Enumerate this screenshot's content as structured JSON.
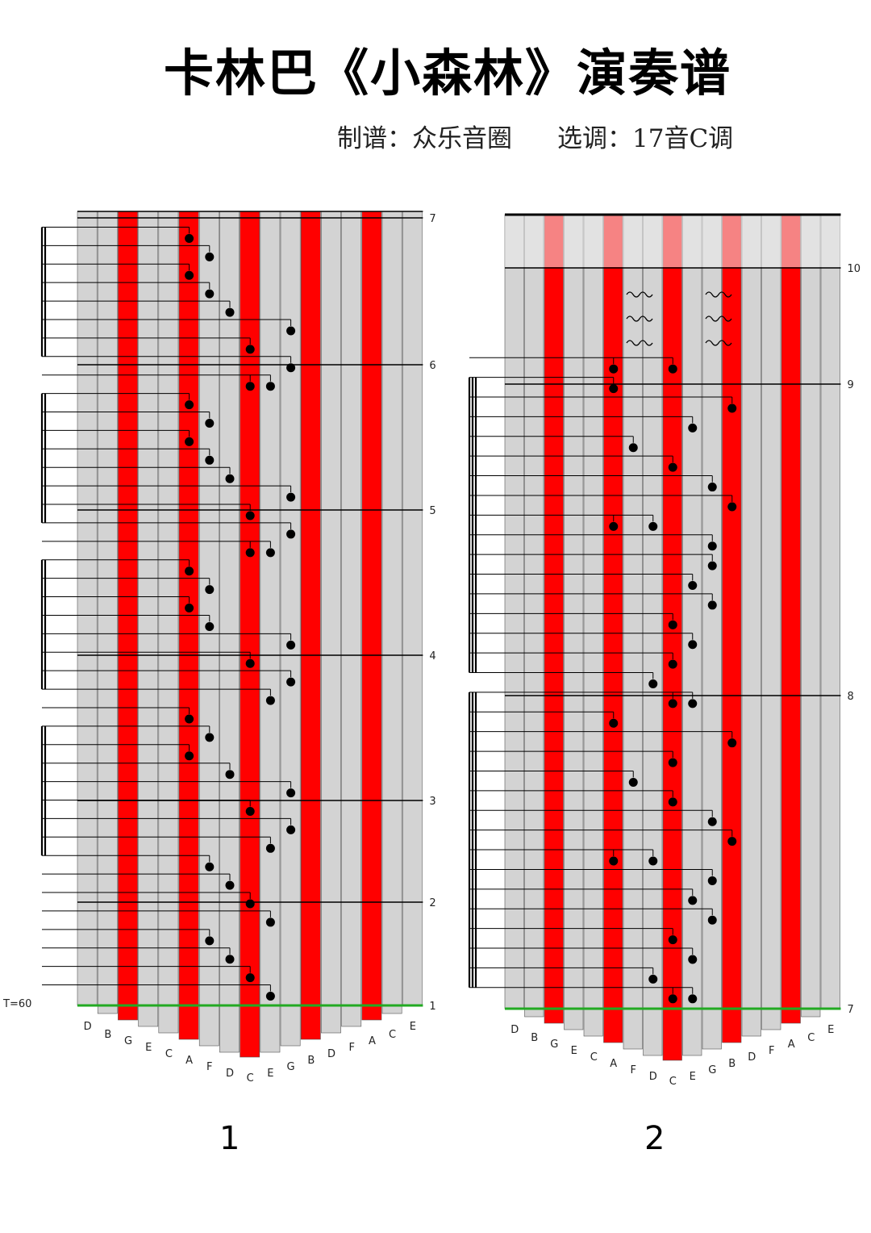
{
  "title": "卡林巴《小森林》演奏谱",
  "credits": {
    "arranger": "制谱：众乐音圈",
    "key": "选调：17音C调"
  },
  "keys": [
    "D",
    "B",
    "G",
    "E",
    "C",
    "A",
    "F",
    "D",
    "C",
    "E",
    "G",
    "B",
    "D",
    "F",
    "A",
    "C",
    "E"
  ],
  "red_key_indices": [
    2,
    5,
    8,
    11,
    14
  ],
  "colors": {
    "red_key": "#ff0000",
    "grey_key": "#d3d3d3",
    "line": "#000000",
    "green_line": "#22aa22",
    "background": "#ffffff"
  },
  "panels": [
    {
      "page_label": "1",
      "tempo": "T=60",
      "bar_numbers": [
        "1",
        "2",
        "3",
        "4",
        "5",
        "6",
        "7"
      ],
      "beam_groups": [
        {
          "type": "double",
          "rows": [
            1,
            2,
            3,
            4,
            5,
            6,
            7,
            8
          ]
        },
        {
          "type": "double",
          "rows": [
            10,
            11,
            12,
            13,
            14,
            15,
            16,
            17
          ]
        },
        {
          "type": "double",
          "rows": [
            19,
            20,
            21,
            22,
            23,
            24,
            25,
            26
          ]
        },
        {
          "type": "double",
          "rows": [
            28,
            29,
            30,
            31,
            32,
            33,
            34,
            35
          ]
        },
        {
          "type": "single",
          "rows": [
            37,
            38,
            39,
            40
          ]
        },
        {
          "type": "single",
          "rows": [
            41,
            42,
            43,
            44
          ]
        }
      ],
      "notes_top_to_bottom": [
        [
          "A"
        ],
        [
          "F"
        ],
        [
          "A"
        ],
        [
          "F"
        ],
        [
          "D"
        ],
        [
          "G"
        ],
        [
          "C"
        ],
        [
          "G"
        ],
        [
          "E",
          "C"
        ],
        [
          "A"
        ],
        [
          "F"
        ],
        [
          "A"
        ],
        [
          "F"
        ],
        [
          "D"
        ],
        [
          "G"
        ],
        [
          "C"
        ],
        [
          "G"
        ],
        [
          "E",
          "C"
        ],
        [
          "A"
        ],
        [
          "F"
        ],
        [
          "A"
        ],
        [
          "F"
        ],
        [
          "G"
        ],
        [
          "C"
        ],
        [
          "G"
        ],
        [
          "E"
        ],
        [
          "A"
        ],
        [
          "F"
        ],
        [
          "A"
        ],
        [
          "D"
        ],
        [
          "G"
        ],
        [
          "C"
        ],
        [
          "G"
        ],
        [
          "E"
        ],
        [
          "F"
        ],
        [
          "D"
        ],
        [
          "C"
        ],
        [
          "E"
        ],
        [
          "F"
        ],
        [
          "D"
        ],
        [
          "C"
        ],
        [
          "E"
        ]
      ]
    },
    {
      "page_label": "2",
      "tempo": "",
      "bar_numbers": [
        "7",
        "8",
        "9",
        "10"
      ],
      "trill_marks": 6,
      "beam_groups": [
        {
          "type": "single",
          "rows": [
            1
          ]
        },
        {
          "type": "triple",
          "rows": [
            2,
            3,
            4,
            5,
            6,
            7,
            8,
            9,
            10,
            11,
            12,
            13,
            14,
            15,
            16,
            17
          ]
        },
        {
          "type": "triple",
          "rows": [
            18,
            19,
            20,
            21,
            22,
            23,
            24,
            25,
            26,
            27,
            28,
            29,
            30,
            31,
            32,
            33
          ]
        }
      ],
      "notes_top_to_bottom": [
        [
          "A",
          "C"
        ],
        [
          "A"
        ],
        [
          "B"
        ],
        [
          "E"
        ],
        [
          "F"
        ],
        [
          "C"
        ],
        [
          "G"
        ],
        [
          "B"
        ],
        [
          "A",
          "D"
        ],
        [
          "G"
        ],
        [
          "G"
        ],
        [
          "E"
        ],
        [
          "G"
        ],
        [
          "C"
        ],
        [
          "E"
        ],
        [
          "C"
        ],
        [
          "D"
        ],
        [
          "E",
          "C"
        ],
        [
          "A"
        ],
        [
          "B"
        ],
        [
          "C"
        ],
        [
          "F"
        ],
        [
          "C"
        ],
        [
          "G"
        ],
        [
          "B"
        ],
        [
          "A",
          "D"
        ],
        [
          "G"
        ],
        [
          "E"
        ],
        [
          "G"
        ],
        [
          "C"
        ],
        [
          "E"
        ],
        [
          "D"
        ],
        [
          "E",
          "C"
        ]
      ]
    }
  ]
}
